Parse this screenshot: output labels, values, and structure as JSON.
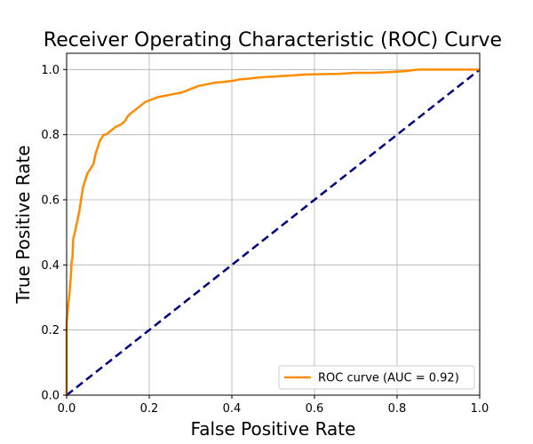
{
  "chart_data": {
    "type": "line",
    "title": "Receiver Operating Characteristic (ROC) Curve",
    "xlabel": "False Positive Rate",
    "ylabel": "True Positive Rate",
    "xlim": [
      0.0,
      1.0
    ],
    "ylim": [
      0.0,
      1.05
    ],
    "xticks": [
      0.0,
      0.2,
      0.4,
      0.6,
      0.8,
      1.0
    ],
    "yticks": [
      0.0,
      0.2,
      0.4,
      0.6,
      0.8,
      1.0
    ],
    "xtick_labels": [
      "0.0",
      "0.2",
      "0.4",
      "0.6",
      "0.8",
      "1.0"
    ],
    "ytick_labels": [
      "0.0",
      "0.2",
      "0.4",
      "0.6",
      "0.8",
      "1.0"
    ],
    "grid": true,
    "legend_position": "lower-right",
    "series": [
      {
        "name": "ROC curve (AUC = 0.92)",
        "color": "#ff8c00",
        "style": "solid",
        "x": [
          0.0,
          0.0,
          0.002,
          0.004,
          0.006,
          0.008,
          0.01,
          0.012,
          0.014,
          0.016,
          0.018,
          0.02,
          0.025,
          0.03,
          0.035,
          0.04,
          0.045,
          0.05,
          0.055,
          0.06,
          0.065,
          0.07,
          0.075,
          0.08,
          0.085,
          0.09,
          0.095,
          0.1,
          0.105,
          0.11,
          0.12,
          0.13,
          0.14,
          0.15,
          0.16,
          0.17,
          0.18,
          0.19,
          0.2,
          0.21,
          0.22,
          0.24,
          0.26,
          0.28,
          0.3,
          0.32,
          0.34,
          0.36,
          0.38,
          0.4,
          0.42,
          0.44,
          0.46,
          0.48,
          0.5,
          0.52,
          0.55,
          0.58,
          0.62,
          0.66,
          0.7,
          0.74,
          0.78,
          0.82,
          0.85,
          0.9,
          0.95,
          1.0
        ],
        "y": [
          0.0,
          0.22,
          0.25,
          0.28,
          0.3,
          0.33,
          0.36,
          0.41,
          0.42,
          0.48,
          0.49,
          0.5,
          0.53,
          0.56,
          0.6,
          0.64,
          0.66,
          0.68,
          0.69,
          0.7,
          0.71,
          0.74,
          0.76,
          0.78,
          0.79,
          0.8,
          0.8,
          0.805,
          0.81,
          0.815,
          0.825,
          0.83,
          0.84,
          0.86,
          0.87,
          0.88,
          0.89,
          0.9,
          0.905,
          0.91,
          0.915,
          0.92,
          0.925,
          0.93,
          0.94,
          0.95,
          0.955,
          0.96,
          0.962,
          0.965,
          0.97,
          0.972,
          0.975,
          0.977,
          0.978,
          0.98,
          0.982,
          0.985,
          0.986,
          0.987,
          0.99,
          0.99,
          0.992,
          0.995,
          1.0,
          1.0,
          1.0,
          1.0
        ]
      },
      {
        "color": "#000080",
        "style": "dashed",
        "x": [
          0.0,
          1.0
        ],
        "y": [
          0.0,
          1.0
        ]
      }
    ]
  }
}
